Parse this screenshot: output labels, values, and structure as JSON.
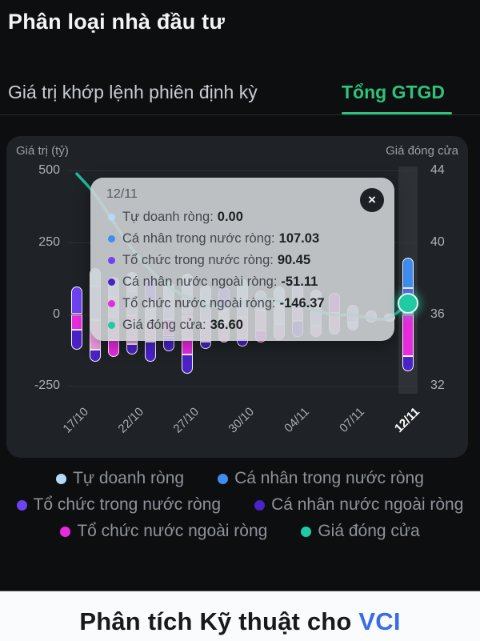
{
  "header": {
    "title": "Phân loại nhà đầu tư"
  },
  "tabs": {
    "inactive_label": "Giá trị khớp lệnh phiên định kỳ",
    "active_label": "Tổng GTGD",
    "active_color": "#2ec27a"
  },
  "chart_data": {
    "type": "stacked-bar+line",
    "left_axis_title": "Giá trị (tỷ)",
    "right_axis_title": "Giá đóng cửa",
    "y_left_ticks": [
      500,
      250,
      0,
      -250
    ],
    "y_right_ticks": [
      44,
      40,
      36,
      32
    ],
    "x_tick_labels": [
      "17/10",
      "22/10",
      "27/10",
      "30/10",
      "04/11",
      "07/11",
      "12/11"
    ],
    "x_tick_bar_index": [
      0,
      3,
      6,
      9,
      12,
      15,
      18
    ],
    "selected_bar_index": 18,
    "series_colors": {
      "lightblue": "#b5d9f8",
      "blue": "#3f8df2",
      "violet": "#6f42f2",
      "deep": "#4a23c6",
      "magenta": "#e92be0",
      "pink": "#f5a0e6",
      "lavender": "#c4b3f5",
      "pale": "#d9e8fa",
      "teal": "#1fcaa5"
    },
    "bars": [
      {
        "segments": [
          [
            "violet",
            95,
            0
          ],
          [
            "magenta",
            0,
            -55
          ],
          [
            "deep",
            -55,
            -125
          ]
        ]
      },
      {
        "segments": [
          [
            "lightblue",
            160,
            95
          ],
          [
            "lavender",
            95,
            -20
          ],
          [
            "pink",
            -20,
            -125
          ],
          [
            "deep",
            -125,
            -165
          ]
        ]
      },
      {
        "segments": [
          [
            "lightblue",
            130,
            60
          ],
          [
            "pale",
            60,
            -10
          ],
          [
            "pink",
            -10,
            -90
          ],
          [
            "magenta",
            -90,
            -148
          ]
        ]
      },
      {
        "segments": [
          [
            "lightblue",
            145,
            78
          ],
          [
            "lavender",
            78,
            -5
          ],
          [
            "pink",
            -5,
            -105
          ],
          [
            "deep",
            -105,
            -140
          ]
        ]
      },
      {
        "segments": [
          [
            "violet",
            120,
            40
          ],
          [
            "pale",
            40,
            -15
          ],
          [
            "pink",
            -15,
            -95
          ],
          [
            "deep",
            -95,
            -165
          ]
        ]
      },
      {
        "segments": [
          [
            "lightblue",
            112,
            55
          ],
          [
            "lavender",
            55,
            -18
          ],
          [
            "magenta",
            -18,
            -78
          ],
          [
            "deep",
            -78,
            -130
          ]
        ]
      },
      {
        "segments": [
          [
            "lightblue",
            140,
            72
          ],
          [
            "lavender",
            72,
            0
          ],
          [
            "pink",
            0,
            -88
          ],
          [
            "magenta",
            -88,
            -140
          ],
          [
            "deep",
            -140,
            -208
          ]
        ]
      },
      {
        "segments": [
          [
            "lightblue",
            102,
            40
          ],
          [
            "lavender",
            40,
            -25
          ],
          [
            "pink",
            -25,
            -95
          ],
          [
            "deep",
            -95,
            -122
          ]
        ]
      },
      {
        "segments": [
          [
            "violet",
            92,
            20
          ],
          [
            "pale",
            20,
            -30
          ],
          [
            "pink",
            -30,
            -100
          ]
        ]
      },
      {
        "segments": [
          [
            "lightblue",
            120,
            58
          ],
          [
            "lavender",
            58,
            -10
          ],
          [
            "pink",
            -10,
            -85
          ],
          [
            "deep",
            -85,
            -112
          ]
        ]
      },
      {
        "segments": [
          [
            "lavender",
            82,
            12
          ],
          [
            "pink",
            12,
            -58
          ],
          [
            "magenta",
            -58,
            -100
          ]
        ]
      },
      {
        "segments": [
          [
            "lightblue",
            95,
            30
          ],
          [
            "pale",
            30,
            -35
          ],
          [
            "pink",
            -35,
            -90
          ]
        ]
      },
      {
        "segments": [
          [
            "lavender",
            108,
            45
          ],
          [
            "pink",
            45,
            -25
          ],
          [
            "deep",
            -25,
            -80
          ]
        ]
      },
      {
        "segments": [
          [
            "lightblue",
            85,
            25
          ],
          [
            "lavender",
            25,
            -40
          ],
          [
            "pink",
            -40,
            -78
          ]
        ]
      },
      {
        "segments": [
          [
            "magenta",
            75,
            5
          ],
          [
            "pink",
            5,
            -72
          ]
        ]
      },
      {
        "segments": [
          [
            "lavender",
            33,
            -30
          ],
          [
            "lightblue",
            -30,
            -58
          ]
        ]
      },
      {
        "segments": [
          [
            "lavender",
            12,
            -30
          ]
        ]
      },
      {
        "segments": [
          [
            "lightblue",
            2,
            -26
          ]
        ]
      },
      {
        "segments": [
          [
            "blue",
            197,
            90
          ],
          [
            "violet",
            90,
            0
          ],
          [
            "magenta",
            0,
            -146
          ],
          [
            "deep",
            -146,
            -198
          ]
        ]
      }
    ],
    "close_line": [
      43.8,
      42.7,
      41.1,
      39.6,
      38.4,
      37.5,
      36.9,
      36.5,
      36.3,
      36.6,
      36.9,
      36.7,
      36.5,
      36.2,
      35.9,
      36.0,
      35.7,
      35.7,
      36.6
    ],
    "selected_point": {
      "bar_index": 18,
      "value": 36.6
    }
  },
  "tooltip": {
    "date": "12/11",
    "close_label": "×",
    "rows": [
      {
        "label": "Tự doanh ròng:",
        "value": "0.00",
        "color": "lightblue"
      },
      {
        "label": "Cá nhân trong nước ròng:",
        "value": "107.03",
        "color": "blue"
      },
      {
        "label": "Tổ chức trong nước ròng:",
        "value": "90.45",
        "color": "violet"
      },
      {
        "label": "Cá nhân nước ngoài ròng:",
        "value": "-51.11",
        "color": "deep"
      },
      {
        "label": "Tổ chức nước ngoài ròng:",
        "value": "-146.37",
        "color": "magenta"
      },
      {
        "label": "Giá đóng cửa:",
        "value": "36.60",
        "color": "teal"
      }
    ]
  },
  "legend": {
    "items": [
      {
        "label": "Tự doanh ròng",
        "color": "lightblue"
      },
      {
        "label": "Cá nhân trong nước ròng",
        "color": "blue"
      },
      {
        "label": "Tổ chức trong nước ròng",
        "color": "violet"
      },
      {
        "label": "Cá nhân nước ngoài ròng",
        "color": "deep"
      },
      {
        "label": "Tổ chức nước ngoài ròng",
        "color": "magenta"
      },
      {
        "label": "Giá đóng cửa",
        "color": "teal"
      }
    ]
  },
  "footer": {
    "prefix": "Phân tích Kỹ thuật cho ",
    "link": "VCI",
    "link_color": "#3b6ce8"
  }
}
